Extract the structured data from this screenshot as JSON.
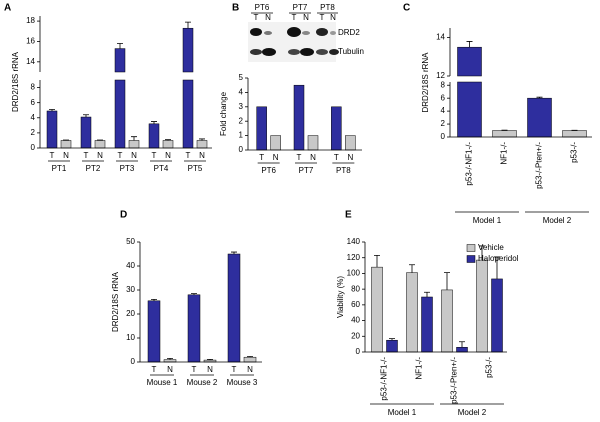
{
  "chart_data": [
    {
      "type": "bar",
      "label": "A",
      "ylabel": "DRD2/18S rRNA",
      "categories": [
        "PT1",
        "PT2",
        "PT3",
        "PT4",
        "PT5"
      ],
      "series": [
        {
          "name": "T",
          "color": "#2e2e9e",
          "values": [
            4.9,
            4.1,
            15.3,
            3.2,
            17.3
          ],
          "errors": [
            0.2,
            0.3,
            0.5,
            0.3,
            0.6
          ]
        },
        {
          "name": "N",
          "color": "#c8c8c8",
          "values": [
            1,
            1,
            1,
            1,
            1
          ],
          "errors": [
            0.05,
            0.05,
            0.5,
            0.1,
            0.2
          ]
        }
      ],
      "ylim": [
        [
          0,
          9
        ],
        [
          13,
          18.5
        ]
      ],
      "yticks": [
        0,
        2,
        4,
        6,
        8,
        14,
        16,
        18
      ]
    },
    {
      "type": "bar",
      "label": "B",
      "ylabel": "Fold change",
      "blot": {
        "bands": [
          "DRD2",
          "Tubulin"
        ]
      },
      "categories": [
        "PT6",
        "PT7",
        "PT8"
      ],
      "series": [
        {
          "name": "T",
          "color": "#2e2e9e",
          "values": [
            3,
            4.5,
            3
          ]
        },
        {
          "name": "N",
          "color": "#c8c8c8",
          "values": [
            1,
            1,
            1
          ]
        }
      ],
      "ylim": [
        0,
        5
      ],
      "yticks": [
        0,
        1,
        2,
        3,
        4,
        5
      ]
    },
    {
      "type": "bar",
      "label": "C",
      "ylabel": "DRD2/18S rRNA",
      "categories": [
        "p53-/-NF1-/-",
        "NF1-/-",
        "p53-/-Pten+/-",
        "p53-/-"
      ],
      "values": [
        13.5,
        1,
        6,
        1
      ],
      "errors": [
        0.3,
        0.05,
        0.15,
        0.03
      ],
      "colors": [
        "#2e2e9e",
        "#c8c8c8",
        "#2e2e9e",
        "#c8c8c8"
      ],
      "groups": [
        "Model 1",
        "Model 2"
      ],
      "ylim": [
        [
          0,
          8.5
        ],
        [
          12,
          14.5
        ]
      ],
      "yticks": [
        0,
        2,
        4,
        6,
        8,
        12,
        14
      ]
    },
    {
      "type": "bar",
      "label": "D",
      "ylabel": "DRD2/18S rRNA",
      "categories": [
        "Mouse 1",
        "Mouse 2",
        "Mouse 3"
      ],
      "series": [
        {
          "name": "T",
          "color": "#2e2e9e",
          "values": [
            25.5,
            28,
            45
          ],
          "errors": [
            0.6,
            0.5,
            0.8
          ]
        },
        {
          "name": "N",
          "color": "#c8c8c8",
          "values": [
            1,
            0.8,
            2
          ],
          "errors": [
            0.5,
            0.3,
            0.3
          ]
        }
      ],
      "ylim": [
        0,
        50
      ],
      "yticks": [
        0,
        10,
        20,
        30,
        40,
        50
      ]
    },
    {
      "type": "bar",
      "label": "E",
      "ylabel": "Viability (%)",
      "categories": [
        "p53-/-NF1-/-",
        "NF1-/-",
        "p53-/-Pten+/-",
        "p53-/-"
      ],
      "series": [
        {
          "name": "Vehicle",
          "color": "#c8c8c8",
          "values": [
            108,
            101,
            79,
            117
          ],
          "errors": [
            15,
            10,
            22,
            18
          ]
        },
        {
          "name": "Haloperidol",
          "color": "#2e2e9e",
          "values": [
            15,
            70,
            6,
            93
          ],
          "errors": [
            2,
            6,
            7,
            28
          ]
        }
      ],
      "groups": [
        "Model 1",
        "Model 2"
      ],
      "legend": "upper right",
      "ylim": [
        0,
        140
      ],
      "yticks": [
        0,
        20,
        40,
        60,
        80,
        100,
        120,
        140
      ]
    }
  ]
}
